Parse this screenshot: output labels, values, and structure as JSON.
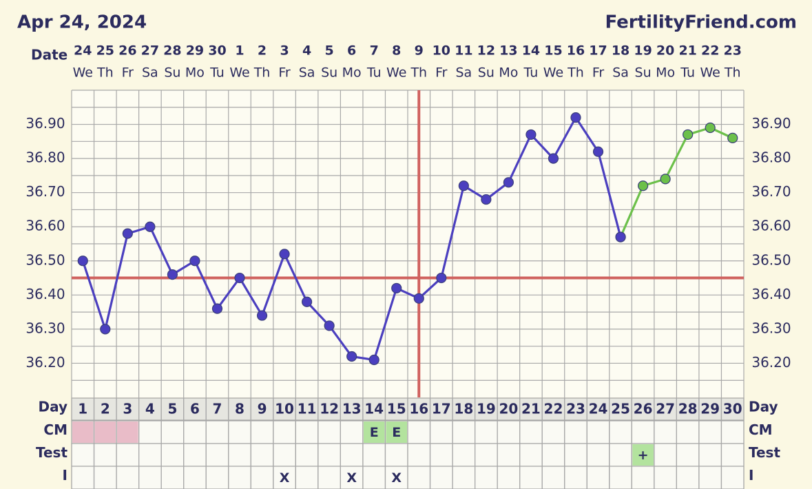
{
  "chart_data": {
    "type": "line",
    "title": "Apr 24, 2024",
    "site": "FertilityFriend.com",
    "date_label": "Date",
    "dates": [
      "24",
      "25",
      "26",
      "27",
      "28",
      "29",
      "30",
      "1",
      "2",
      "3",
      "4",
      "5",
      "6",
      "7",
      "8",
      "9",
      "10",
      "11",
      "12",
      "13",
      "14",
      "15",
      "16",
      "17",
      "18",
      "19",
      "20",
      "21",
      "22",
      "23"
    ],
    "weekdays": [
      "We",
      "Th",
      "Fr",
      "Sa",
      "Su",
      "Mo",
      "Tu",
      "We",
      "Th",
      "Fr",
      "Sa",
      "Su",
      "Mo",
      "Tu",
      "We",
      "Th",
      "Fr",
      "Sa",
      "Su",
      "Mo",
      "Tu",
      "We",
      "Th",
      "Fr",
      "Sa",
      "Su",
      "Mo",
      "Tu",
      "We",
      "Th"
    ],
    "days": [
      1,
      2,
      3,
      4,
      5,
      6,
      7,
      8,
      9,
      10,
      11,
      12,
      13,
      14,
      15,
      16,
      17,
      18,
      19,
      20,
      21,
      22,
      23,
      24,
      25,
      26,
      27,
      28,
      29,
      30
    ],
    "series": [
      {
        "color": "#6cc04a",
        "values": [
          null,
          null,
          null,
          null,
          null,
          null,
          null,
          null,
          null,
          null,
          null,
          null,
          null,
          null,
          null,
          null,
          null,
          null,
          null,
          null,
          null,
          null,
          null,
          null,
          36.57,
          36.72,
          36.74,
          36.87,
          36.89,
          36.86
        ]
      },
      {
        "color": "#4b3fbf",
        "values": [
          36.5,
          36.3,
          36.58,
          36.6,
          36.46,
          36.5,
          36.36,
          36.45,
          36.34,
          36.52,
          36.38,
          36.31,
          36.22,
          36.21,
          36.42,
          36.39,
          36.45,
          36.72,
          36.68,
          36.73,
          36.87,
          36.8,
          36.92,
          36.82,
          36.57,
          null,
          null,
          null,
          null,
          null
        ]
      }
    ],
    "ylim": [
      36.1,
      37.0
    ],
    "yticks": [
      {
        "value": 36.2,
        "label": "36.20"
      },
      {
        "value": 36.3,
        "label": "36.30"
      },
      {
        "value": 36.4,
        "label": "36.40"
      },
      {
        "value": 36.5,
        "label": "36.50"
      },
      {
        "value": 36.6,
        "label": "36.60"
      },
      {
        "value": 36.7,
        "label": "36.70"
      },
      {
        "value": 36.8,
        "label": "36.80"
      },
      {
        "value": 36.9,
        "label": "36.90"
      }
    ],
    "minor_yticks": [
      36.15,
      36.25,
      36.35,
      36.45,
      36.55,
      36.65,
      36.75,
      36.85,
      36.95
    ],
    "grid": true,
    "coverline": 36.45,
    "coverline_color": "#d0625f",
    "ovulation_day": 16,
    "row_labels": {
      "day": "Day",
      "cm": "CM",
      "test": "Test",
      "i": "I"
    },
    "cm": [
      {
        "day": 1,
        "color": "#e9bcc8"
      },
      {
        "day": 2,
        "color": "#e9bcc8"
      },
      {
        "day": 3,
        "color": "#e9bcc8"
      },
      {
        "day": 14,
        "label": "E",
        "color": "#b3e39e"
      },
      {
        "day": 15,
        "label": "E",
        "color": "#b3e39e"
      }
    ],
    "test": [
      {
        "day": 26,
        "label": "+",
        "color": "#b3e39e"
      }
    ],
    "i": [
      {
        "day": 10,
        "label": "X"
      },
      {
        "day": 13,
        "label": "X"
      },
      {
        "day": 15,
        "label": "X"
      }
    ]
  }
}
